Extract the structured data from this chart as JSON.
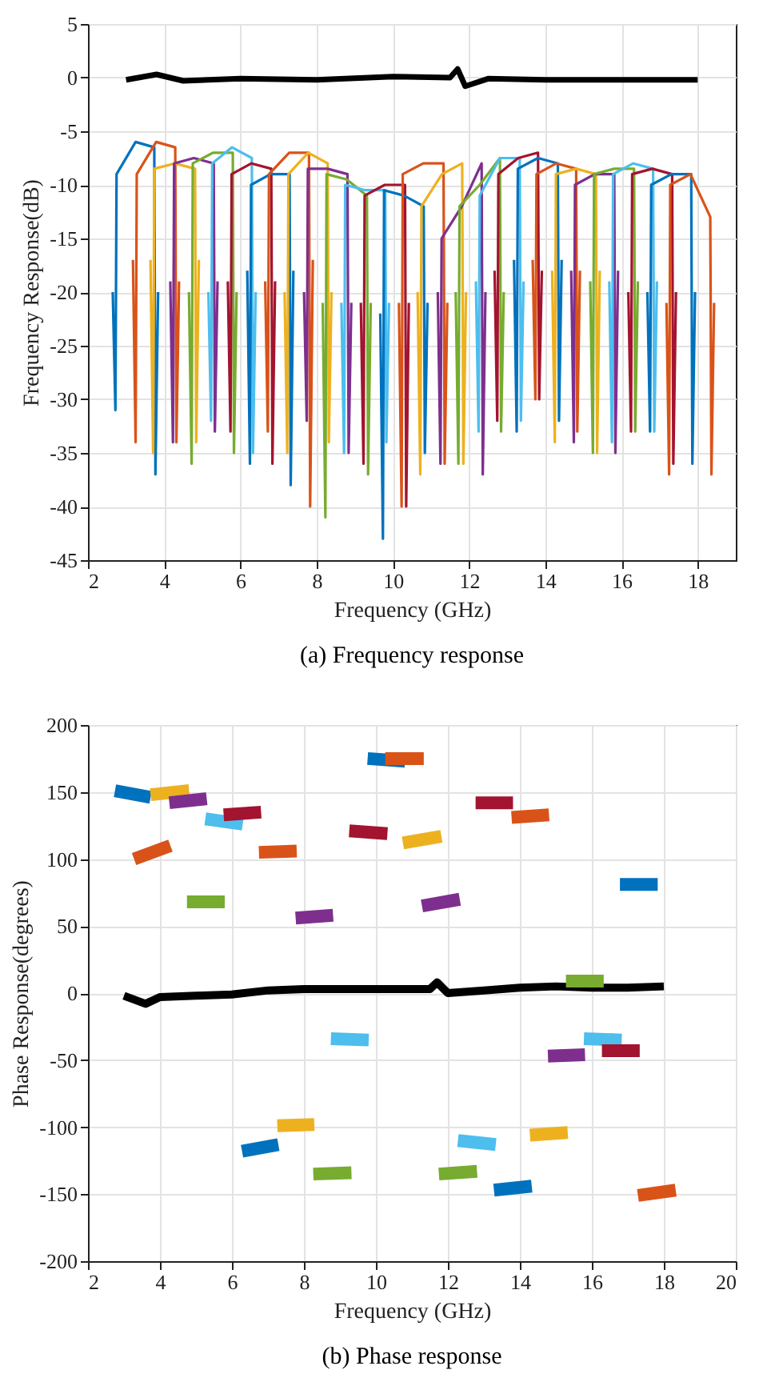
{
  "chart_data": [
    {
      "type": "line",
      "title": "(a)  Frequency response",
      "xlabel": "Frequency (GHz)",
      "ylabel": "Frequency Response(dB)",
      "xlim": [
        2,
        19
      ],
      "xticks": [
        2,
        4,
        6,
        8,
        10,
        12,
        14,
        16,
        18
      ],
      "ylim": [
        -45,
        5
      ],
      "yticks": [
        -45,
        -40,
        -35,
        -30,
        -25,
        -20,
        -15,
        -10,
        -5,
        0,
        5
      ],
      "grid": true,
      "line_style": "solid",
      "marker": "none",
      "series": [
        {
          "color": "#000000",
          "x": [
            3,
            3.8,
            4.5,
            6,
            8,
            10,
            11.5,
            11.7,
            11.9,
            12.5,
            14,
            16,
            18
          ],
          "values": [
            -0.2,
            0.3,
            -0.3,
            -0.1,
            -0.2,
            0.1,
            0,
            0.8,
            -0.8,
            -0.1,
            -0.2,
            -0.2,
            -0.2
          ]
        },
        {
          "color": "#0072bd",
          "x": [
            2.65,
            2.72,
            2.75,
            3.25,
            3.74,
            3.77,
            3.84
          ],
          "values": [
            -20,
            -31,
            -9,
            -6,
            -6.5,
            -37,
            -20
          ]
        },
        {
          "color": "#d95319",
          "x": [
            3.18,
            3.25,
            3.28,
            3.79,
            4.29,
            4.32,
            4.39
          ],
          "values": [
            -17,
            -34,
            -9,
            -6,
            -6.5,
            -34,
            -19
          ]
        },
        {
          "color": "#edb120",
          "x": [
            3.64,
            3.71,
            3.74,
            4.28,
            4.81,
            4.84,
            4.91
          ],
          "values": [
            -17,
            -35,
            -8.5,
            -8,
            -8.5,
            -34,
            -17
          ]
        },
        {
          "color": "#7e2f8e",
          "x": [
            4.16,
            4.23,
            4.26,
            4.78,
            5.3,
            5.33,
            5.4
          ],
          "values": [
            -19,
            -34,
            -8,
            -7.5,
            -8,
            -33,
            -19
          ]
        },
        {
          "color": "#77ac30",
          "x": [
            4.65,
            4.72,
            4.75,
            5.28,
            5.8,
            5.83,
            5.9
          ],
          "values": [
            -20,
            -36,
            -8,
            -7,
            -7,
            -35,
            -20
          ]
        },
        {
          "color": "#4dbeee",
          "x": [
            5.16,
            5.23,
            5.26,
            5.78,
            6.3,
            6.33,
            6.4
          ],
          "values": [
            -20,
            -32,
            -8,
            -6.5,
            -7.5,
            -35,
            -20
          ]
        },
        {
          "color": "#a2142f",
          "x": [
            5.67,
            5.74,
            5.77,
            6.29,
            6.81,
            6.84,
            6.91
          ],
          "values": [
            -19,
            -33,
            -9,
            -8,
            -8.5,
            -36,
            -19
          ]
        },
        {
          "color": "#0072bd",
          "x": [
            6.18,
            6.25,
            6.28,
            6.79,
            7.29,
            7.32,
            7.39
          ],
          "values": [
            -18,
            -36,
            -10,
            -9,
            -9,
            -38,
            -18
          ]
        },
        {
          "color": "#d95319",
          "x": [
            6.65,
            6.72,
            6.75,
            7.28,
            7.8,
            7.83,
            7.9
          ],
          "values": [
            -19,
            -33,
            -9,
            -7,
            -7,
            -40,
            -17
          ]
        },
        {
          "color": "#edb120",
          "x": [
            7.16,
            7.23,
            7.26,
            7.78,
            8.29,
            8.32,
            8.39
          ],
          "values": [
            -20,
            -35,
            -9,
            -7,
            -8,
            -34,
            -20
          ]
        },
        {
          "color": "#7e2f8e",
          "x": [
            7.67,
            7.74,
            7.77,
            8.29,
            8.81,
            8.84,
            8.91
          ],
          "values": [
            -20,
            -32,
            -8.5,
            -8.5,
            -9,
            -35,
            -21
          ]
        },
        {
          "color": "#77ac30",
          "x": [
            8.16,
            8.23,
            8.26,
            8.79,
            9.32,
            9.35,
            9.42
          ],
          "values": [
            -21,
            -41,
            -9,
            -9.5,
            -11,
            -37,
            -21
          ]
        },
        {
          "color": "#4dbeee",
          "x": [
            8.65,
            8.72,
            8.75,
            9.28,
            9.8,
            9.83,
            9.9
          ],
          "values": [
            -21,
            -35,
            -10,
            -10.5,
            -10.5,
            -34,
            -21
          ]
        },
        {
          "color": "#a2142f",
          "x": [
            9.16,
            9.23,
            9.26,
            9.79,
            10.32,
            10.35,
            10.42
          ],
          "values": [
            -21,
            -36,
            -11,
            -10,
            -10,
            -40,
            -21
          ]
        },
        {
          "color": "#0072bd",
          "x": [
            9.67,
            9.74,
            9.77,
            10.29,
            10.81,
            10.84,
            10.91
          ],
          "values": [
            -22,
            -43,
            -10.5,
            -11,
            -12,
            -35,
            -21
          ]
        },
        {
          "color": "#d95319",
          "x": [
            10.16,
            10.23,
            10.26,
            10.8,
            11.33,
            11.36,
            11.43
          ],
          "values": [
            -21,
            -40,
            -9,
            -8,
            -8,
            -36,
            -21
          ]
        },
        {
          "color": "#edb120",
          "x": [
            10.65,
            10.72,
            10.75,
            11.29,
            11.82,
            11.85,
            11.92
          ],
          "values": [
            -20,
            -37,
            -12,
            -9,
            -8,
            -36,
            -20
          ]
        },
        {
          "color": "#7e2f8e",
          "x": [
            11.18,
            11.25,
            11.28,
            11.81,
            12.33,
            12.36,
            12.43
          ],
          "values": [
            -20,
            -36,
            -15,
            -12,
            -8,
            -37,
            -20
          ]
        },
        {
          "color": "#77ac30",
          "x": [
            11.65,
            11.72,
            11.75,
            12.28,
            12.81,
            12.84,
            12.91
          ],
          "values": [
            -20,
            -36,
            -12,
            -10,
            -7.5,
            -33,
            -20
          ]
        },
        {
          "color": "#4dbeee",
          "x": [
            12.18,
            12.25,
            12.28,
            12.81,
            13.33,
            13.36,
            13.43
          ],
          "values": [
            -19,
            -33,
            -11,
            -7.5,
            -7.5,
            -32,
            -19
          ]
        },
        {
          "color": "#a2142f",
          "x": [
            12.67,
            12.74,
            12.77,
            13.29,
            13.81,
            13.84,
            13.91
          ],
          "values": [
            -18,
            -32,
            -9,
            -7.5,
            -7,
            -30,
            -18
          ]
        },
        {
          "color": "#0072bd",
          "x": [
            13.18,
            13.25,
            13.28,
            13.81,
            14.33,
            14.36,
            14.43
          ],
          "values": [
            -17,
            -33,
            -8.5,
            -7.5,
            -8,
            -32,
            -17
          ]
        },
        {
          "color": "#d95319",
          "x": [
            13.67,
            13.74,
            13.77,
            14.29,
            14.81,
            14.84,
            14.91
          ],
          "values": [
            -17,
            -30,
            -9,
            -8,
            -8.5,
            -33,
            -18
          ]
        },
        {
          "color": "#edb120",
          "x": [
            14.18,
            14.25,
            14.28,
            14.81,
            15.33,
            15.36,
            15.43
          ],
          "values": [
            -18,
            -34,
            -9,
            -8.5,
            -9,
            -35,
            -18
          ]
        },
        {
          "color": "#7e2f8e",
          "x": [
            14.68,
            14.75,
            14.78,
            15.3,
            15.81,
            15.84,
            15.91
          ],
          "values": [
            -18,
            -34,
            -10,
            -9,
            -9,
            -35,
            -18
          ]
        },
        {
          "color": "#77ac30",
          "x": [
            15.18,
            15.25,
            15.28,
            15.81,
            16.33,
            16.36,
            16.43
          ],
          "values": [
            -19,
            -35,
            -9,
            -8.5,
            -8.5,
            -33,
            -19
          ]
        },
        {
          "color": "#4dbeee",
          "x": [
            15.68,
            15.75,
            15.78,
            16.31,
            16.83,
            16.86,
            16.93
          ],
          "values": [
            -19,
            -34,
            -9,
            -8,
            -8.5,
            -33,
            -19
          ]
        },
        {
          "color": "#a2142f",
          "x": [
            16.18,
            16.25,
            16.28,
            16.81,
            17.33,
            17.36,
            17.43
          ],
          "values": [
            -20,
            -33,
            -9,
            -8.5,
            -9,
            -36,
            -20
          ]
        },
        {
          "color": "#0072bd",
          "x": [
            16.68,
            16.75,
            16.78,
            17.31,
            17.83,
            17.86,
            17.93
          ],
          "values": [
            -20,
            -33,
            -10,
            -9,
            -9,
            -36,
            -20
          ]
        },
        {
          "color": "#d95319",
          "x": [
            17.18,
            17.25,
            17.28,
            17.81,
            18.33,
            18.36,
            18.43
          ],
          "values": [
            -21,
            -37,
            -10,
            -9,
            -13,
            -37,
            -21
          ]
        }
      ]
    },
    {
      "type": "line",
      "title": "(b)  Phase response",
      "xlabel": "Frequency (GHz)",
      "ylabel": "Phase Response(degrees)",
      "xlim": [
        2,
        20
      ],
      "xticks": [
        2,
        4,
        6,
        8,
        10,
        12,
        14,
        16,
        18,
        20
      ],
      "ylim": [
        -200,
        200
      ],
      "yticks": [
        -200,
        -150,
        -100,
        -50,
        0,
        50,
        100,
        150,
        200
      ],
      "grid": true,
      "line_style": "solid",
      "marker": "none",
      "series": [
        {
          "color": "#000000",
          "x": [
            3,
            3.6,
            4,
            5,
            6,
            7,
            8,
            10,
            11.5,
            11.7,
            12,
            13,
            14,
            15,
            16,
            17,
            18
          ],
          "values": [
            -2,
            -8,
            -3,
            -2,
            -1,
            2,
            3,
            3,
            3,
            8,
            0,
            2,
            4,
            5,
            4,
            4,
            5
          ]
        },
        {
          "color": "#0072bd",
          "x": [
            2.75,
            3.74
          ],
          "values": [
            151,
            146
          ]
        },
        {
          "color": "#d95319",
          "x": [
            3.28,
            4.29
          ],
          "values": [
            100,
            110
          ]
        },
        {
          "color": "#edb120",
          "x": [
            3.74,
            4.81
          ],
          "values": [
            148,
            151
          ]
        },
        {
          "color": "#7e2f8e",
          "x": [
            4.26,
            5.3
          ],
          "values": [
            142,
            145
          ]
        },
        {
          "color": "#77ac30",
          "x": [
            4.75,
            5.8
          ],
          "values": [
            68,
            68
          ]
        },
        {
          "color": "#4dbeee",
          "x": [
            5.26,
            6.3
          ],
          "values": [
            130,
            126
          ]
        },
        {
          "color": "#a2142f",
          "x": [
            5.77,
            6.81
          ],
          "values": [
            133,
            135
          ]
        },
        {
          "color": "#0072bd",
          "x": [
            6.28,
            7.29
          ],
          "values": [
            -118,
            -113
          ]
        },
        {
          "color": "#d95319",
          "x": [
            6.75,
            7.8
          ],
          "values": [
            105,
            106
          ]
        },
        {
          "color": "#edb120",
          "x": [
            7.26,
            8.29
          ],
          "values": [
            -99,
            -98
          ]
        },
        {
          "color": "#7e2f8e",
          "x": [
            7.77,
            8.81
          ],
          "values": [
            56,
            58
          ]
        },
        {
          "color": "#77ac30",
          "x": [
            8.26,
            9.32
          ],
          "values": [
            -135,
            -134
          ]
        },
        {
          "color": "#4dbeee",
          "x": [
            8.75,
            9.8
          ],
          "values": [
            -34,
            -35
          ]
        },
        {
          "color": "#a2142f",
          "x": [
            9.26,
            10.32
          ],
          "values": [
            121,
            119
          ]
        },
        {
          "color": "#0072bd",
          "x": [
            9.77,
            10.81
          ],
          "values": [
            175,
            173
          ]
        },
        {
          "color": "#d95319",
          "x": [
            10.26,
            11.33
          ],
          "values": [
            175,
            175
          ]
        },
        {
          "color": "#edb120",
          "x": [
            10.75,
            11.82
          ],
          "values": [
            112,
            117
          ]
        },
        {
          "color": "#7e2f8e",
          "x": [
            11.28,
            12.33
          ],
          "values": [
            65,
            70
          ]
        },
        {
          "color": "#77ac30",
          "x": [
            11.75,
            12.81
          ],
          "values": [
            -135,
            -133
          ]
        },
        {
          "color": "#4dbeee",
          "x": [
            12.28,
            13.33
          ],
          "values": [
            -110,
            -113
          ]
        },
        {
          "color": "#a2142f",
          "x": [
            12.77,
            13.81
          ],
          "values": [
            142,
            142
          ]
        },
        {
          "color": "#0072bd",
          "x": [
            13.28,
            14.33
          ],
          "values": [
            -147,
            -144
          ]
        },
        {
          "color": "#d95319",
          "x": [
            13.77,
            14.81
          ],
          "values": [
            131,
            133
          ]
        },
        {
          "color": "#edb120",
          "x": [
            14.28,
            15.33
          ],
          "values": [
            -106,
            -104
          ]
        },
        {
          "color": "#7e2f8e",
          "x": [
            14.78,
            15.81
          ],
          "values": [
            -47,
            -46
          ]
        },
        {
          "color": "#77ac30",
          "x": [
            15.28,
            16.33
          ],
          "values": [
            9,
            9
          ]
        },
        {
          "color": "#4dbeee",
          "x": [
            15.78,
            16.83
          ],
          "values": [
            -34,
            -35
          ]
        },
        {
          "color": "#a2142f",
          "x": [
            16.28,
            17.33
          ],
          "values": [
            -43,
            -43
          ]
        },
        {
          "color": "#0072bd",
          "x": [
            16.78,
            17.83
          ],
          "values": [
            81,
            81
          ]
        },
        {
          "color": "#d95319",
          "x": [
            17.28,
            18.33
          ],
          "values": [
            -151,
            -147
          ]
        }
      ]
    }
  ]
}
